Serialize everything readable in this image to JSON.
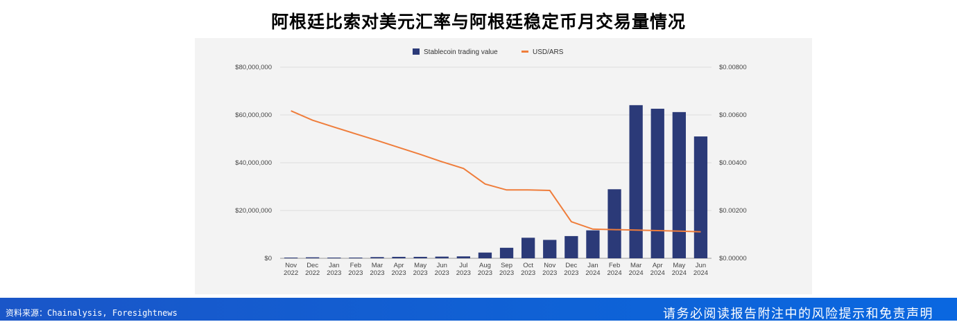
{
  "title": "阿根廷比索对美元汇率与阿根廷稳定币月交易量情况",
  "footer": {
    "source": "资料来源：Chainalysis, Foresightnews",
    "disclaimer": "请务必阅读报告附注中的风险提示和免责声明",
    "color": "#1a56c8"
  },
  "chart_data": {
    "type": "bar",
    "categories": [
      [
        "Nov",
        "2022"
      ],
      [
        "Dec",
        "2022"
      ],
      [
        "Jan",
        "2023"
      ],
      [
        "Feb",
        "2023"
      ],
      [
        "Mar",
        "2023"
      ],
      [
        "Apr",
        "2023"
      ],
      [
        "May",
        "2023"
      ],
      [
        "Jun",
        "2023"
      ],
      [
        "Jul",
        "2023"
      ],
      [
        "Aug",
        "2023"
      ],
      [
        "Sep",
        "2023"
      ],
      [
        "Oct",
        "2023"
      ],
      [
        "Nov",
        "2023"
      ],
      [
        "Dec",
        "2023"
      ],
      [
        "Jan",
        "2024"
      ],
      [
        "Feb",
        "2024"
      ],
      [
        "Mar",
        "2024"
      ],
      [
        "Apr",
        "2024"
      ],
      [
        "May",
        "2024"
      ],
      [
        "Jun",
        "2024"
      ]
    ],
    "series": [
      {
        "name": "Stablecoin trading value",
        "type": "bar",
        "axis": "left",
        "color": "#2b3a78",
        "values": [
          300000,
          400000,
          300000,
          300000,
          500000,
          600000,
          600000,
          700000,
          800000,
          2400000,
          4400000,
          8600000,
          7700000,
          9300000,
          11700000,
          28900000,
          64100000,
          62600000,
          61200000,
          51000000
        ]
      },
      {
        "name": "USD/ARS",
        "type": "line",
        "axis": "right",
        "color": "#ef7d3b",
        "values": [
          0.00617,
          0.00578,
          0.00549,
          0.00521,
          0.00493,
          0.00464,
          0.00435,
          0.00404,
          0.00376,
          0.00311,
          0.00286,
          0.00286,
          0.00284,
          0.00153,
          0.00122,
          0.0012,
          0.00118,
          0.00116,
          0.00114,
          0.00111
        ]
      }
    ],
    "y_left": {
      "min": 0,
      "max": 80000000,
      "ticks": [
        "$0",
        "$20,000,000",
        "$40,000,000",
        "$60,000,000",
        "$80,000,000"
      ]
    },
    "y_right": {
      "min": 0,
      "max": 0.008,
      "ticks": [
        "$0.00000",
        "$0.00200",
        "$0.00400",
        "$0.00600",
        "$0.00800"
      ]
    },
    "grid": true,
    "legend_position": "top"
  }
}
